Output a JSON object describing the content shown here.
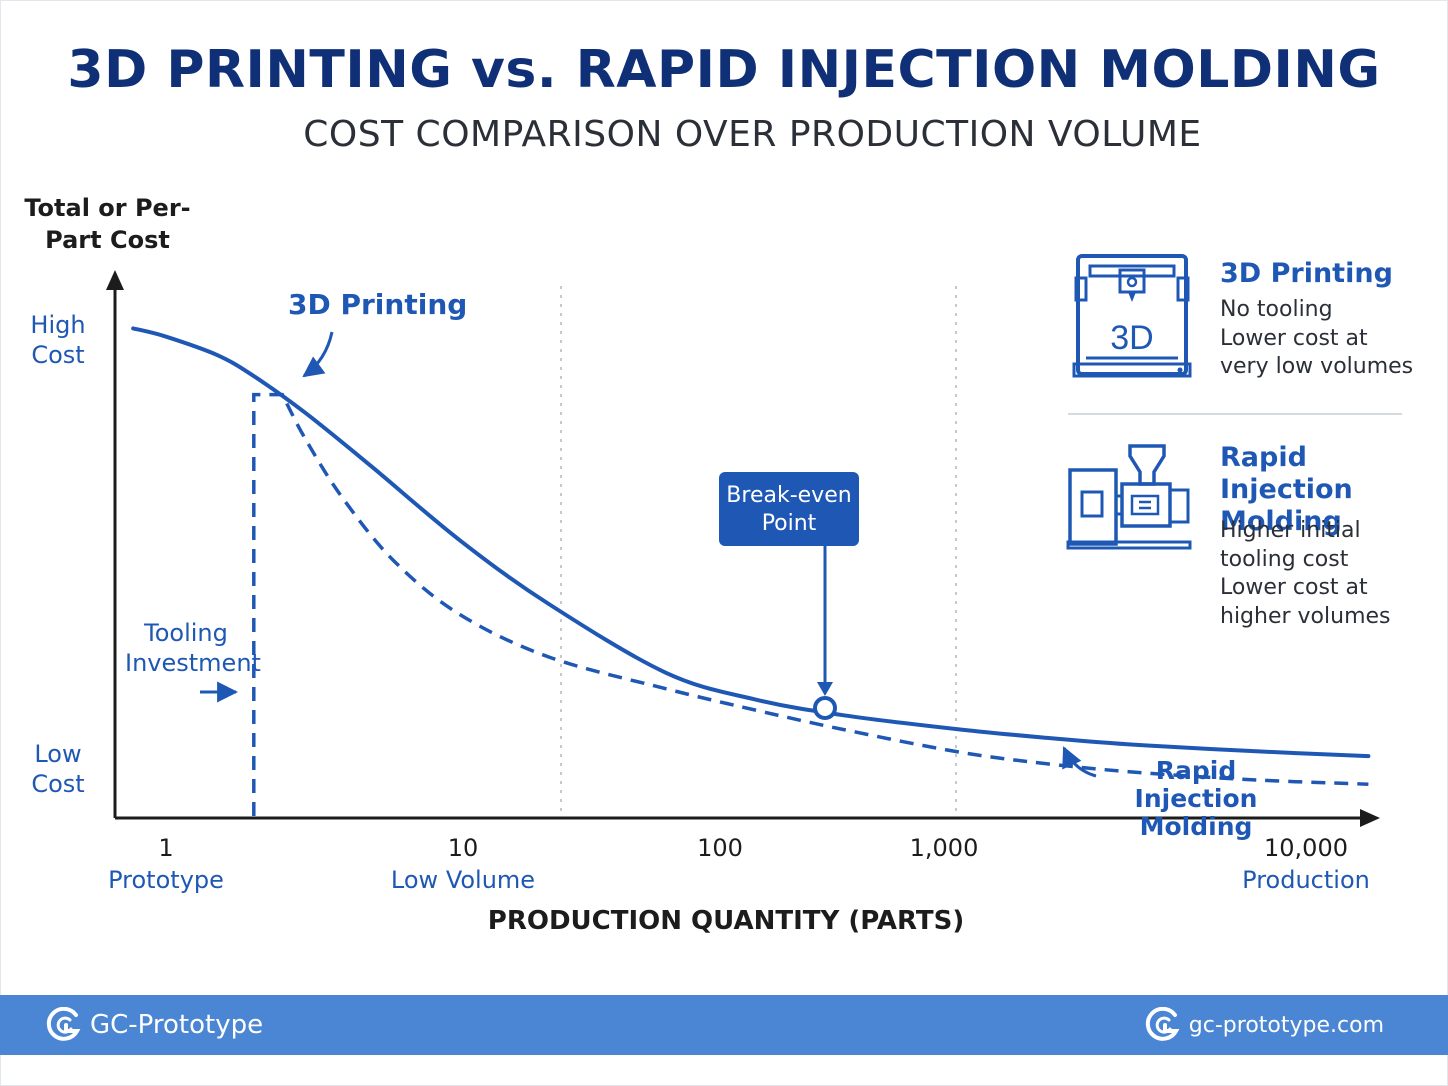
{
  "header": {
    "title": "3D PRINTING vs. RAPID INJECTION MOLDING",
    "subtitle": "COST COMPARISON OVER PRODUCTION VOLUME"
  },
  "chart_data": {
    "type": "line",
    "title": "3D PRINTING vs. RAPID INJECTION MOLDING",
    "subtitle": "COST COMPARISON OVER PRODUCTION VOLUME",
    "xlabel": "PRODUCTION QUANTITY (PARTS)",
    "ylabel": "Total or Per-Part Cost",
    "x_scale": "log",
    "x_ticks": [
      {
        "value": 1,
        "label": "1",
        "category": "Prototype"
      },
      {
        "value": 10,
        "label": "10",
        "category": "Low Volume"
      },
      {
        "value": 100,
        "label": "100",
        "category": ""
      },
      {
        "value": 1000,
        "label": "1,000",
        "category": ""
      },
      {
        "value": 10000,
        "label": "10,000",
        "category": "Production"
      }
    ],
    "y_ticks": [
      {
        "position": "top",
        "label": "High Cost"
      },
      {
        "position": "bottom",
        "label": "Low Cost"
      }
    ],
    "ylim": [
      0,
      1
    ],
    "grid": "vertical-dotted",
    "series": [
      {
        "name": "3D Printing",
        "style": "solid",
        "color": "#1f58b4",
        "x": [
          0.78,
          1,
          1.5,
          2,
          3,
          5,
          10,
          20,
          50,
          100,
          200,
          500,
          1000,
          2000,
          5000,
          12000
        ],
        "y": [
          0.92,
          0.905,
          0.87,
          0.83,
          0.76,
          0.66,
          0.52,
          0.4,
          0.27,
          0.22,
          0.19,
          0.163,
          0.147,
          0.134,
          0.122,
          0.113
        ]
      },
      {
        "name": "Rapid Injection Molding",
        "style": "dashed",
        "color": "#1f58b4",
        "x": [
          2,
          2,
          2.5,
          3,
          4,
          6,
          10,
          20,
          50,
          100,
          200,
          500,
          1000,
          2000,
          5000,
          12000
        ],
        "y": [
          0.0,
          0.795,
          0.795,
          0.71,
          0.6,
          0.48,
          0.38,
          0.3,
          0.24,
          0.2,
          0.163,
          0.12,
          0.098,
          0.082,
          0.068,
          0.06
        ]
      }
    ],
    "annotations": [
      {
        "label": "Break-even Point",
        "x": 100,
        "y": 0.2
      },
      {
        "label": "Tooling Investment",
        "x": 2,
        "y": 0.25
      }
    ]
  },
  "legend": {
    "items": [
      {
        "title": "3D Printing",
        "icon": "3d-printer-icon",
        "icon_text": "3D",
        "lines": [
          "No tooling",
          "Lower cost at",
          "very low volumes"
        ]
      },
      {
        "title_lines": [
          "Rapid Injection",
          "Molding"
        ],
        "icon": "injection-machine-icon",
        "lines": [
          "Higher initial",
          "tooling cost",
          "Lower cost at",
          "higher volumes"
        ]
      }
    ]
  },
  "footer": {
    "brand": "GC-Prototype",
    "url": "gc-prototype.com"
  },
  "colors": {
    "title": "#0f2f77",
    "accent": "#1f58b4",
    "footer_bg": "#4a86d4"
  }
}
